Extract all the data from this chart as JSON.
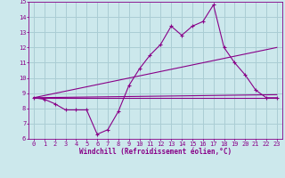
{
  "xlabel": "Windchill (Refroidissement éolien,°C)",
  "background_color": "#cce8ec",
  "grid_color": "#aacdd4",
  "line_color": "#880088",
  "xlim": [
    -0.5,
    23.5
  ],
  "ylim": [
    6,
    15
  ],
  "xticks": [
    0,
    1,
    2,
    3,
    4,
    5,
    6,
    7,
    8,
    9,
    10,
    11,
    12,
    13,
    14,
    15,
    16,
    17,
    18,
    19,
    20,
    21,
    22,
    23
  ],
  "yticks": [
    6,
    7,
    8,
    9,
    10,
    11,
    12,
    13,
    14,
    15
  ],
  "line1_x": [
    0,
    1,
    2,
    3,
    4,
    5,
    6,
    7,
    8,
    9,
    10,
    11,
    12,
    13,
    14,
    15,
    16,
    17,
    18,
    19,
    20,
    21,
    22,
    23
  ],
  "line1_y": [
    8.7,
    8.6,
    8.3,
    7.9,
    7.9,
    7.9,
    6.3,
    6.6,
    7.8,
    9.5,
    10.6,
    11.5,
    12.2,
    13.4,
    12.8,
    13.4,
    13.7,
    14.8,
    12.0,
    11.0,
    10.2,
    9.2,
    8.7,
    8.7
  ],
  "line2_x": [
    0,
    23
  ],
  "line2_y": [
    8.7,
    8.7
  ],
  "line3_x": [
    0,
    23
  ],
  "line3_y": [
    8.7,
    12.0
  ],
  "line4_x": [
    0,
    23
  ],
  "line4_y": [
    8.7,
    8.9
  ],
  "xlabel_fontsize": 5.5,
  "tick_fontsize": 5
}
